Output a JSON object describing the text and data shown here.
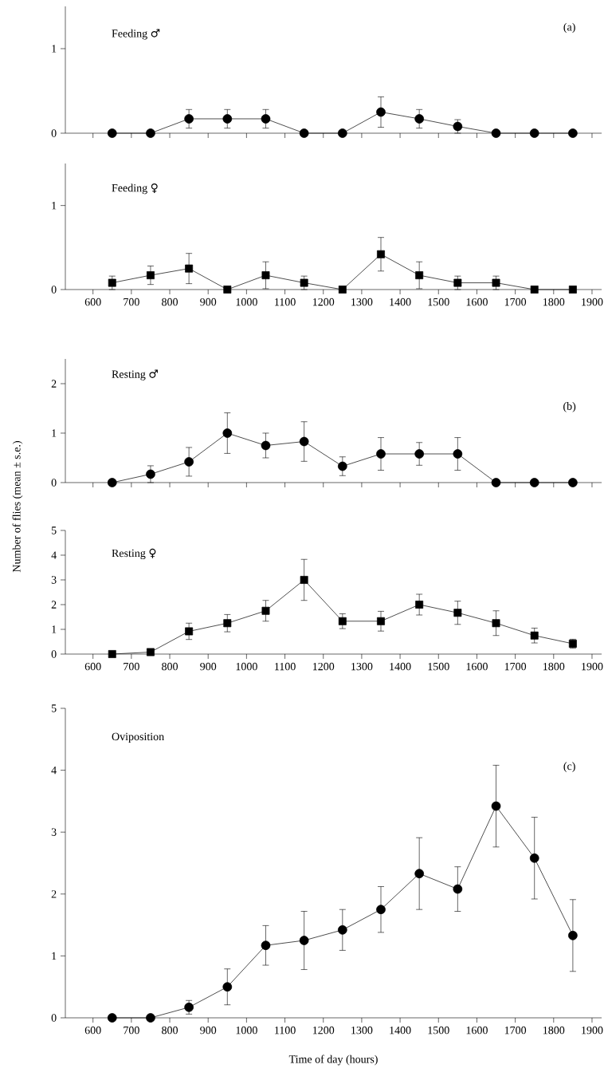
{
  "chart_data": [
    {
      "type": "line",
      "title": "Feeding ♂",
      "annotations": [
        "(a)"
      ],
      "marker": "circle",
      "x": [
        650,
        750,
        850,
        950,
        1050,
        1150,
        1250,
        1350,
        1450,
        1550,
        1650,
        1750,
        1850
      ],
      "values": [
        0,
        0,
        0.17,
        0.17,
        0.17,
        0,
        0,
        0.25,
        0.17,
        0.08,
        0,
        0,
        0
      ],
      "errors": [
        null,
        null,
        0.11,
        0.11,
        0.11,
        null,
        null,
        0.18,
        0.11,
        0.08,
        null,
        null,
        null
      ],
      "xlim": [
        528,
        1925
      ],
      "xticks": [
        600,
        700,
        800,
        900,
        1000,
        1100,
        1200,
        1300,
        1400,
        1500,
        1600,
        1700,
        1800,
        1900
      ],
      "ylim": [
        0,
        1.5
      ],
      "yticks": [
        0,
        1
      ],
      "tick_labels": "y",
      "color": "#000000"
    },
    {
      "type": "line",
      "title": "Feeding ♀",
      "marker": "square",
      "x": [
        650,
        750,
        850,
        950,
        1050,
        1150,
        1250,
        1350,
        1450,
        1550,
        1650,
        1750,
        1850
      ],
      "values": [
        0.08,
        0.17,
        0.25,
        0,
        0.17,
        0.08,
        0,
        0.42,
        0.17,
        0.08,
        0.08,
        0,
        0
      ],
      "errors": [
        0.08,
        0.11,
        0.18,
        null,
        0.16,
        0.08,
        null,
        0.2,
        0.16,
        0.08,
        0.08,
        null,
        null
      ],
      "xlim": [
        528,
        1925
      ],
      "xticks": [
        600,
        700,
        800,
        900,
        1000,
        1100,
        1200,
        1300,
        1400,
        1500,
        1600,
        1700,
        1800,
        1900
      ],
      "ylim": [
        0,
        1.5
      ],
      "yticks": [
        0,
        1
      ],
      "color": "#000000"
    },
    {
      "type": "line",
      "title": "Resting ♂",
      "annotations": [
        "(b)"
      ],
      "marker": "circle",
      "x": [
        650,
        750,
        850,
        950,
        1050,
        1150,
        1250,
        1350,
        1450,
        1550,
        1650,
        1750,
        1850
      ],
      "values": [
        0,
        0.17,
        0.42,
        1.0,
        0.75,
        0.83,
        0.33,
        0.58,
        0.58,
        0.58,
        0,
        0,
        0
      ],
      "errors": [
        null,
        0.17,
        0.29,
        0.41,
        0.25,
        0.4,
        0.19,
        0.33,
        0.23,
        0.33,
        null,
        null,
        null
      ],
      "xlim": [
        528,
        1925
      ],
      "xticks": [
        600,
        700,
        800,
        900,
        1000,
        1100,
        1200,
        1300,
        1400,
        1500,
        1600,
        1700,
        1800,
        1900
      ],
      "ylim": [
        0,
        2.5
      ],
      "yticks": [
        0,
        1,
        2
      ],
      "tick_labels": "y",
      "color": "#000000"
    },
    {
      "type": "line",
      "title": "Resting ♀",
      "ylabel": "Number of flies (mean ± s.e.)",
      "marker": "square",
      "x": [
        650,
        750,
        850,
        950,
        1050,
        1150,
        1250,
        1350,
        1450,
        1550,
        1650,
        1750,
        1850
      ],
      "values": [
        0,
        0.08,
        0.92,
        1.25,
        1.75,
        3.0,
        1.33,
        1.33,
        2.0,
        1.67,
        1.25,
        0.75,
        0.42
      ],
      "errors": [
        null,
        null,
        0.33,
        0.35,
        0.42,
        0.83,
        0.3,
        0.4,
        0.42,
        0.47,
        0.5,
        0.3,
        0.18
      ],
      "xlim": [
        528,
        1925
      ],
      "xticks": [
        600,
        700,
        800,
        900,
        1000,
        1100,
        1200,
        1300,
        1400,
        1500,
        1600,
        1700,
        1800,
        1900
      ],
      "ylim": [
        0,
        5
      ],
      "yticks": [
        0,
        1,
        2,
        3,
        4,
        5
      ],
      "color": "#000000"
    },
    {
      "type": "line",
      "title": "Oviposition",
      "xlabel": "Time of day (hours)",
      "annotations": [
        "(c)"
      ],
      "marker": "circle",
      "x": [
        650,
        750,
        850,
        950,
        1050,
        1150,
        1250,
        1350,
        1450,
        1550,
        1650,
        1750,
        1850
      ],
      "values": [
        0,
        0,
        0.17,
        0.5,
        1.17,
        1.25,
        1.42,
        1.75,
        2.33,
        2.08,
        3.42,
        2.58,
        1.33
      ],
      "errors": [
        null,
        null,
        0.11,
        0.29,
        0.32,
        0.47,
        0.33,
        0.37,
        0.58,
        0.36,
        0.66,
        0.66,
        0.58
      ],
      "xlim": [
        528,
        1925
      ],
      "xticks": [
        600,
        700,
        800,
        900,
        1000,
        1100,
        1200,
        1300,
        1400,
        1500,
        1600,
        1700,
        1800,
        1900
      ],
      "ylim": [
        0,
        5
      ],
      "yticks": [
        0,
        1,
        2,
        3,
        4,
        5
      ],
      "color": "#000000"
    }
  ]
}
